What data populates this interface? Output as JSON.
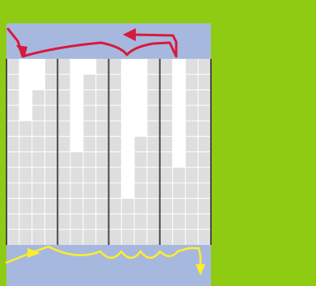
{
  "theme": {
    "green": "#8fcb12",
    "band": "#a7b8df",
    "white": "#ffffff",
    "grey": "#dedede",
    "grid_line": "#ffffff",
    "divider": "#4a4a4a",
    "red_arrow": "#d71a3a",
    "yellow_arrow": "#ffee2a"
  },
  "board": {
    "columns": 16,
    "rows": 12,
    "blocks": [
      {
        "columns": [
          0,
          1,
          2,
          3
        ]
      },
      {
        "columns": [
          4,
          5,
          6,
          7
        ]
      },
      {
        "columns": [
          8,
          9,
          10,
          11
        ]
      },
      {
        "columns": [
          12,
          13,
          14,
          15
        ]
      }
    ],
    "empty_rows_from_top": [
      0,
      4,
      2,
      0,
      0,
      6,
      1,
      0,
      0,
      9,
      5,
      0,
      0,
      7,
      0,
      0
    ]
  },
  "icons": {
    "top_arrow": "red-curved-arrow-icon",
    "bottom_arrow": "yellow-wavy-arrow-icon"
  }
}
